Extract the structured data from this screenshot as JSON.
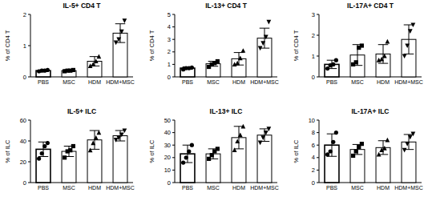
{
  "chart_data": [
    {
      "type": "bar",
      "title": "IL-5+ CD4 T",
      "y_label": "% of CD4 T",
      "color": "#ffffff",
      "categories": [
        "PBS",
        "MSC",
        "HDM",
        "HDM+MSC"
      ],
      "values": [
        0.2,
        0.2,
        0.5,
        1.4
      ],
      "errors": [
        0.02,
        0.03,
        0.15,
        0.3
      ],
      "points": [
        [
          0.18,
          0.2,
          0.2,
          0.22
        ],
        [
          0.18,
          0.2,
          0.2,
          0.22
        ],
        [
          0.35,
          0.4,
          0.5,
          0.65
        ],
        [
          1.1,
          1.2,
          1.45,
          1.8
        ]
      ],
      "ylim": [
        0,
        2
      ],
      "yticks": [
        0,
        1,
        2
      ]
    },
    {
      "type": "bar",
      "title": "IL-13+ CD4 T",
      "y_label": "% of CD4 T",
      "color": "#ffffff",
      "categories": [
        "PBS",
        "MSC",
        "HDM",
        "HDM+MSC"
      ],
      "values": [
        0.7,
        1.05,
        1.45,
        3.1
      ],
      "errors": [
        0.1,
        0.2,
        0.5,
        0.8
      ],
      "points": [
        [
          0.6,
          0.7,
          0.7,
          0.75
        ],
        [
          0.8,
          1.0,
          1.1,
          1.25
        ],
        [
          1.0,
          1.1,
          1.5,
          2.1
        ],
        [
          2.3,
          2.7,
          3.2,
          4.4
        ]
      ],
      "ylim": [
        0,
        5
      ],
      "yticks": [
        0,
        1,
        2,
        3,
        4,
        5
      ]
    },
    {
      "type": "bar",
      "title": "IL-17A+ CD4 T",
      "y_label": "% of CD4 T",
      "color": "#ffffff",
      "categories": [
        "PBS",
        "MSC",
        "HDM",
        "HDM+MSC"
      ],
      "values": [
        0.6,
        1.05,
        1.1,
        1.8
      ],
      "errors": [
        0.2,
        0.5,
        0.45,
        0.7
      ],
      "points": [
        [
          0.4,
          0.55,
          0.6,
          0.8
        ],
        [
          0.6,
          0.7,
          1.4,
          1.5
        ],
        [
          0.8,
          0.85,
          1.0,
          1.7
        ],
        [
          1.0,
          1.5,
          2.2,
          2.5
        ]
      ],
      "ylim": [
        0,
        3
      ],
      "yticks": [
        0,
        1,
        2,
        3
      ]
    },
    {
      "type": "bar",
      "title": "IL-5+ ILC",
      "y_label": "% of ILC",
      "color": "#ffffff",
      "categories": [
        "PBS",
        "MSC",
        "HDM",
        "HDM+MSC"
      ],
      "values": [
        32,
        30,
        41,
        45
      ],
      "errors": [
        7,
        5,
        9,
        5
      ],
      "points": [
        [
          23,
          28,
          35,
          38
        ],
        [
          24,
          30,
          31,
          35
        ],
        [
          31,
          38,
          43,
          48
        ],
        [
          41,
          43,
          46,
          50
        ]
      ],
      "ylim": [
        0,
        60
      ],
      "yticks": [
        0,
        20,
        40,
        60
      ]
    },
    {
      "type": "bar",
      "title": "IL-13+ ILC",
      "y_label": "% of ILC",
      "color": "#ffffff",
      "categories": [
        "PBS",
        "MSC",
        "HDM",
        "HDM+MSC"
      ],
      "values": [
        23,
        23,
        36,
        38
      ],
      "errors": [
        7,
        4,
        9,
        5
      ],
      "points": [
        [
          16,
          20,
          25,
          30
        ],
        [
          19,
          22,
          25,
          27
        ],
        [
          26,
          33,
          38,
          45
        ],
        [
          32,
          36,
          40,
          43
        ]
      ],
      "ylim": [
        0,
        50
      ],
      "yticks": [
        0,
        10,
        20,
        30,
        40,
        50
      ]
    },
    {
      "type": "bar",
      "title": "IL-17A+ ILC",
      "y_label": "% of ILC",
      "color": "#ffffff",
      "categories": [
        "PBS",
        "MSC",
        "HDM",
        "HDM+MSC"
      ],
      "values": [
        6,
        5.3,
        5.6,
        6.5
      ],
      "errors": [
        1.8,
        0.8,
        1.1,
        1.2
      ],
      "points": [
        [
          4.5,
          5,
          6.5,
          8
        ],
        [
          4.3,
          5,
          5.7,
          6.2
        ],
        [
          4.5,
          5.2,
          5.5,
          6.8
        ],
        [
          5.2,
          6.2,
          7.3,
          7.8
        ]
      ],
      "ylim": [
        0,
        10
      ],
      "yticks": [
        0,
        2,
        4,
        6,
        8,
        10
      ]
    }
  ]
}
